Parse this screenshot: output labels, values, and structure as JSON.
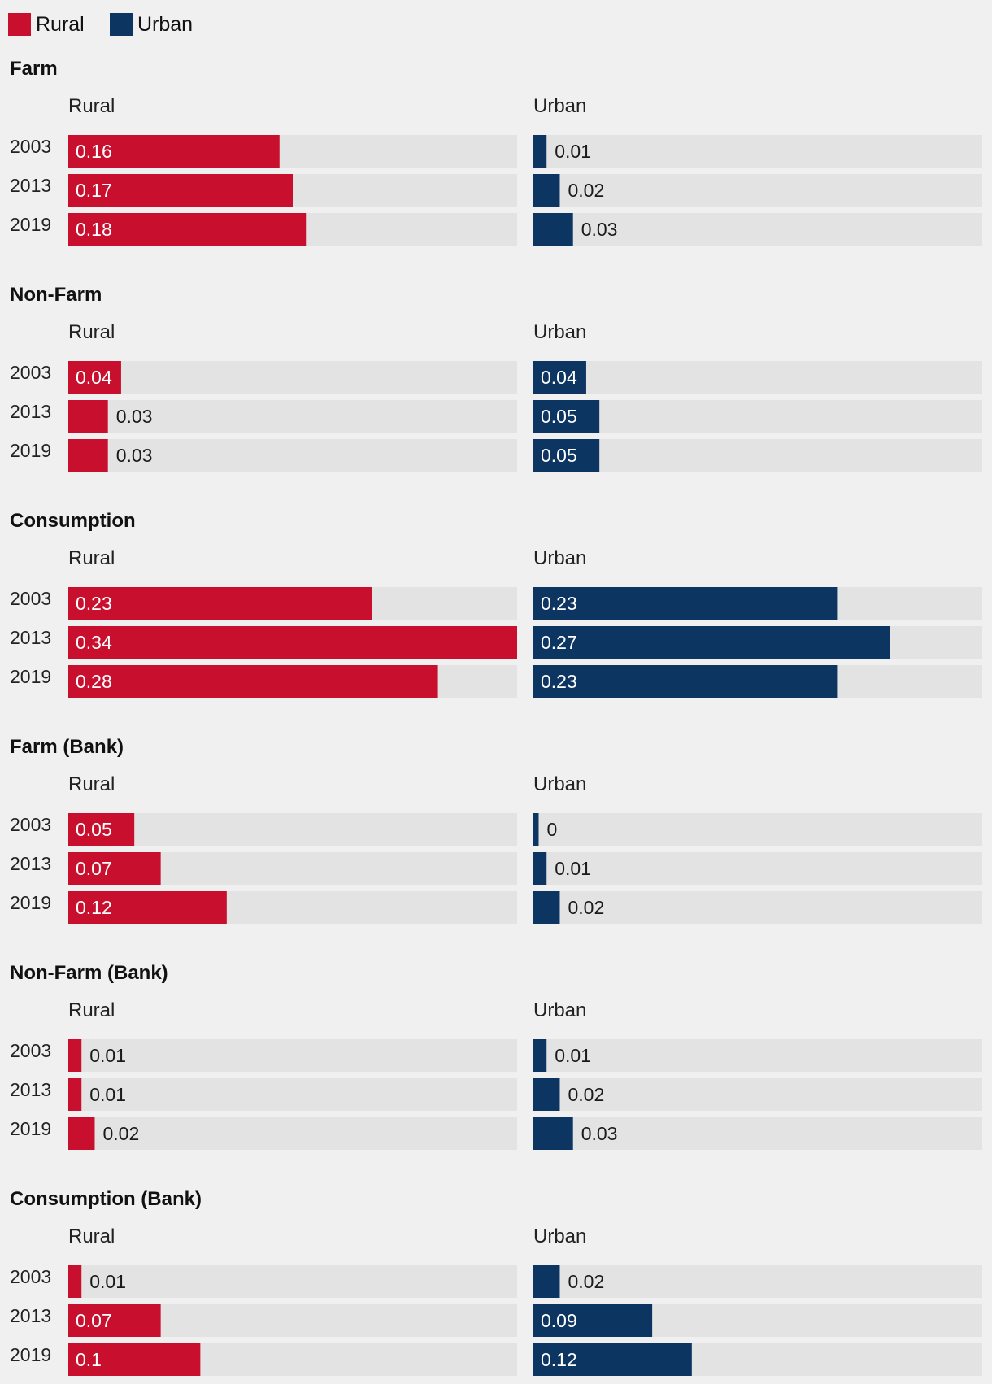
{
  "legend": [
    {
      "name": "Rural",
      "color": "#c8102e"
    },
    {
      "name": "Urban",
      "color": "#0d3561"
    }
  ],
  "chart_data": {
    "type": "bar",
    "orientation": "horizontal",
    "columns": [
      "Rural",
      "Urban"
    ],
    "categories": [
      "2003",
      "2013",
      "2019"
    ],
    "xlim": [
      0,
      0.34
    ],
    "colors": {
      "Rural": "#c8102e",
      "Urban": "#0d3561",
      "track": "#e3e3e3"
    },
    "panels": [
      {
        "title": "Farm",
        "Rural": {
          "values": [
            0.16,
            0.17,
            0.18
          ],
          "labels": [
            "0.16",
            "0.17",
            "0.18"
          ]
        },
        "Urban": {
          "values": [
            0.01,
            0.02,
            0.03
          ],
          "labels": [
            "0.01",
            "0.02",
            "0.03"
          ]
        }
      },
      {
        "title": "Non-Farm",
        "Rural": {
          "values": [
            0.04,
            0.03,
            0.03
          ],
          "labels": [
            "0.04",
            "0.03",
            "0.03"
          ]
        },
        "Urban": {
          "values": [
            0.04,
            0.05,
            0.05
          ],
          "labels": [
            "0.04",
            "0.05",
            "0.05"
          ]
        }
      },
      {
        "title": "Consumption",
        "Rural": {
          "values": [
            0.23,
            0.34,
            0.28
          ],
          "labels": [
            "0.23",
            "0.34",
            "0.28"
          ]
        },
        "Urban": {
          "values": [
            0.23,
            0.27,
            0.23
          ],
          "labels": [
            "0.23",
            "0.27",
            "0.23"
          ]
        }
      },
      {
        "title": "Farm (Bank)",
        "Rural": {
          "values": [
            0.05,
            0.07,
            0.12
          ],
          "labels": [
            "0.05",
            "0.07",
            "0.12"
          ]
        },
        "Urban": {
          "values": [
            0.004,
            0.01,
            0.02
          ],
          "labels": [
            "0",
            "0.01",
            "0.02"
          ]
        }
      },
      {
        "title": "Non-Farm (Bank)",
        "Rural": {
          "values": [
            0.01,
            0.01,
            0.02
          ],
          "labels": [
            "0.01",
            "0.01",
            "0.02"
          ]
        },
        "Urban": {
          "values": [
            0.01,
            0.02,
            0.03
          ],
          "labels": [
            "0.01",
            "0.02",
            "0.03"
          ]
        }
      },
      {
        "title": "Consumption (Bank)",
        "Rural": {
          "values": [
            0.01,
            0.07,
            0.1
          ],
          "labels": [
            "0.01",
            "0.07",
            "0.1"
          ]
        },
        "Urban": {
          "values": [
            0.02,
            0.09,
            0.12
          ],
          "labels": [
            "0.02",
            "0.09",
            "0.12"
          ]
        }
      }
    ]
  }
}
